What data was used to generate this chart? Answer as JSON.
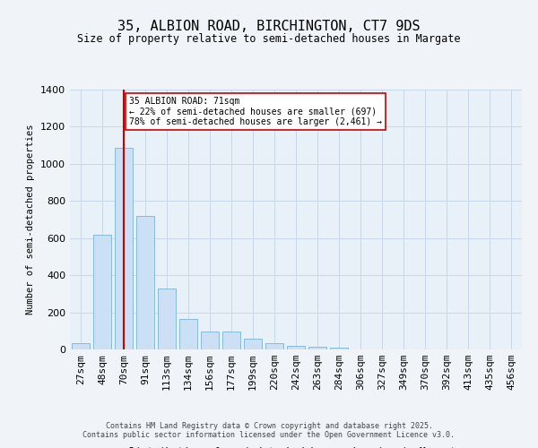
{
  "title1": "35, ALBION ROAD, BIRCHINGTON, CT7 9DS",
  "title2": "Size of property relative to semi-detached houses in Margate",
  "xlabel": "Distribution of semi-detached houses by size in Margate",
  "ylabel": "Number of semi-detached properties",
  "categories": [
    "27sqm",
    "48sqm",
    "70sqm",
    "91sqm",
    "113sqm",
    "134sqm",
    "156sqm",
    "177sqm",
    "199sqm",
    "220sqm",
    "242sqm",
    "263sqm",
    "284sqm",
    "306sqm",
    "327sqm",
    "349sqm",
    "370sqm",
    "392sqm",
    "413sqm",
    "435sqm",
    "456sqm"
  ],
  "values": [
    35,
    620,
    1085,
    720,
    330,
    165,
    95,
    95,
    60,
    35,
    20,
    15,
    10,
    0,
    0,
    0,
    0,
    0,
    0,
    0,
    0
  ],
  "bar_color": "#cce0f5",
  "bar_edge_color": "#7ab4d8",
  "vline_x_idx": 2,
  "vline_color": "#cc0000",
  "annotation_text": "35 ALBION ROAD: 71sqm\n← 22% of semi-detached houses are smaller (697)\n78% of semi-detached houses are larger (2,461) →",
  "annotation_box_color": "#ffffff",
  "annotation_box_edge": "#cc0000",
  "ylim": [
    0,
    1400
  ],
  "yticks": [
    0,
    200,
    400,
    600,
    800,
    1000,
    1200,
    1400
  ],
  "grid_color": "#c8d8e8",
  "background_color": "#e8f0f8",
  "fig_background": "#f0f4f8",
  "footer1": "Contains HM Land Registry data © Crown copyright and database right 2025.",
  "footer2": "Contains public sector information licensed under the Open Government Licence v3.0."
}
